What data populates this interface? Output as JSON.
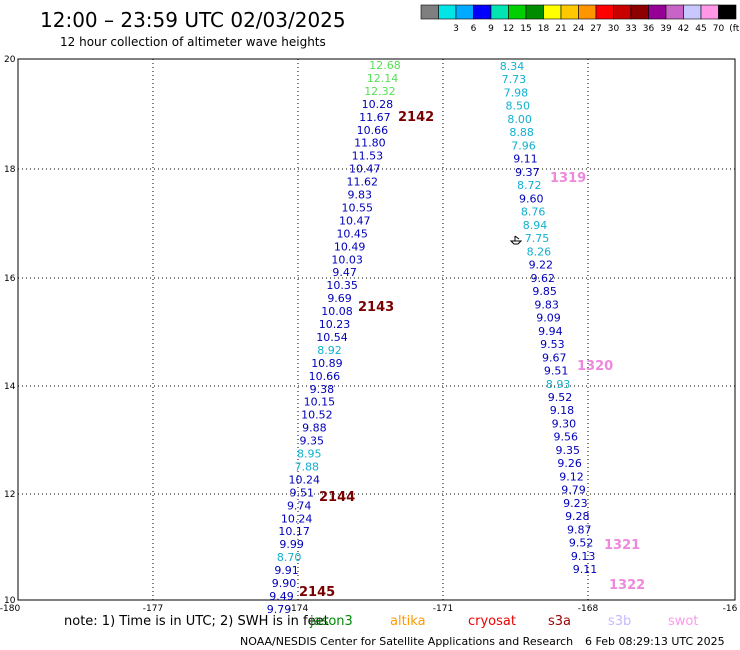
{
  "header": {
    "title": "12:00 – 23:59 UTC 02/03/2025",
    "subtitle": "12 hour collection of altimeter wave heights"
  },
  "legend": {
    "swatches": [
      {
        "color": "#7f7f7f",
        "label": ""
      },
      {
        "color": "#00e5e5",
        "label": "3"
      },
      {
        "color": "#00aaff",
        "label": "6"
      },
      {
        "color": "#0000ff",
        "label": "9"
      },
      {
        "color": "#00e5b2",
        "label": "12"
      },
      {
        "color": "#00d000",
        "label": "15"
      },
      {
        "color": "#008c00",
        "label": "18"
      },
      {
        "color": "#ffff00",
        "label": "21"
      },
      {
        "color": "#ffc800",
        "label": "24"
      },
      {
        "color": "#ff9600",
        "label": "27"
      },
      {
        "color": "#ff0000",
        "label": "30"
      },
      {
        "color": "#c80000",
        "label": "33"
      },
      {
        "color": "#8c0000",
        "label": "36"
      },
      {
        "color": "#960096",
        "label": "39"
      },
      {
        "color": "#c864c8",
        "label": "42"
      },
      {
        "color": "#c8c8ff",
        "label": "45"
      },
      {
        "color": "#ff96e6",
        "label": "70"
      },
      {
        "color": "#000000",
        "label": "(ft)"
      }
    ]
  },
  "axes": {
    "lon_ticks": [
      "-180",
      "-177",
      "-174",
      "-171",
      "-168",
      "-16"
    ],
    "lat_ticks": [
      "10",
      "12",
      "14",
      "16",
      "18",
      "20"
    ]
  },
  "colors": {
    "dark_blue": "#0000bb",
    "cyan": "#10b0d0",
    "light_green": "#55e055",
    "pass_label": "#7a0000",
    "pass_label_pink": "#ee88dd"
  },
  "track_a": [
    {
      "v": "12.68",
      "c": "lightgreen"
    },
    {
      "v": "12.14",
      "c": "lightgreen"
    },
    {
      "v": "12.32",
      "c": "lightgreen"
    },
    {
      "v": "10.28",
      "c": "blue"
    },
    {
      "v": "11.67",
      "c": "blue"
    },
    {
      "v": "10.66",
      "c": "blue"
    },
    {
      "v": "11.80",
      "c": "blue"
    },
    {
      "v": "11.53",
      "c": "blue"
    },
    {
      "v": "10.47",
      "c": "blue"
    },
    {
      "v": "11.62",
      "c": "blue"
    },
    {
      "v": "9.83",
      "c": "blue"
    },
    {
      "v": "10.55",
      "c": "blue"
    },
    {
      "v": "10.47",
      "c": "blue"
    },
    {
      "v": "10.45",
      "c": "blue"
    },
    {
      "v": "10.49",
      "c": "blue"
    },
    {
      "v": "10.03",
      "c": "blue"
    },
    {
      "v": "9.47",
      "c": "blue"
    },
    {
      "v": "10.35",
      "c": "blue"
    },
    {
      "v": "9.69",
      "c": "blue"
    },
    {
      "v": "10.08",
      "c": "blue"
    },
    {
      "v": "10.23",
      "c": "blue"
    },
    {
      "v": "10.54",
      "c": "blue"
    },
    {
      "v": "8.92",
      "c": "cyan"
    },
    {
      "v": "10.89",
      "c": "blue"
    },
    {
      "v": "10.66",
      "c": "blue"
    },
    {
      "v": "9.38",
      "c": "blue"
    },
    {
      "v": "10.15",
      "c": "blue"
    },
    {
      "v": "10.52",
      "c": "blue"
    },
    {
      "v": "9.88",
      "c": "blue"
    },
    {
      "v": "9.35",
      "c": "blue"
    },
    {
      "v": "8.95",
      "c": "cyan"
    },
    {
      "v": "7.88",
      "c": "cyan"
    },
    {
      "v": "10.24",
      "c": "blue"
    },
    {
      "v": "9.51",
      "c": "blue"
    },
    {
      "v": "9.74",
      "c": "blue"
    },
    {
      "v": "10.24",
      "c": "blue"
    },
    {
      "v": "10.17",
      "c": "blue"
    },
    {
      "v": "9.99",
      "c": "blue"
    },
    {
      "v": "8.70",
      "c": "cyan"
    },
    {
      "v": "9.91",
      "c": "blue"
    },
    {
      "v": "9.90",
      "c": "blue"
    },
    {
      "v": "9.49",
      "c": "blue"
    },
    {
      "v": "9.79",
      "c": "blue"
    }
  ],
  "track_b": [
    {
      "v": "8.34",
      "c": "cyan"
    },
    {
      "v": "7.73",
      "c": "cyan"
    },
    {
      "v": "7.98",
      "c": "cyan"
    },
    {
      "v": "8.50",
      "c": "cyan"
    },
    {
      "v": "8.00",
      "c": "cyan"
    },
    {
      "v": "8.88",
      "c": "cyan"
    },
    {
      "v": "7.96",
      "c": "cyan"
    },
    {
      "v": "9.11",
      "c": "blue"
    },
    {
      "v": "9.37",
      "c": "blue"
    },
    {
      "v": "8.72",
      "c": "cyan"
    },
    {
      "v": "9.60",
      "c": "blue"
    },
    {
      "v": "8.76",
      "c": "cyan"
    },
    {
      "v": "8.94",
      "c": "cyan"
    },
    {
      "v": "7.75",
      "c": "cyan"
    },
    {
      "v": "8.26",
      "c": "cyan"
    },
    {
      "v": "9.22",
      "c": "blue"
    },
    {
      "v": "9.62",
      "c": "blue"
    },
    {
      "v": "9.85",
      "c": "blue"
    },
    {
      "v": "9.83",
      "c": "blue"
    },
    {
      "v": "9.09",
      "c": "blue"
    },
    {
      "v": "9.94",
      "c": "blue"
    },
    {
      "v": "9.53",
      "c": "blue"
    },
    {
      "v": "9.67",
      "c": "blue"
    },
    {
      "v": "9.51",
      "c": "blue"
    },
    {
      "v": "8.93",
      "c": "cyan"
    },
    {
      "v": "9.52",
      "c": "blue"
    },
    {
      "v": "9.18",
      "c": "blue"
    },
    {
      "v": "9.30",
      "c": "blue"
    },
    {
      "v": "9.56",
      "c": "blue"
    },
    {
      "v": "9.35",
      "c": "blue"
    },
    {
      "v": "9.26",
      "c": "blue"
    },
    {
      "v": "9.12",
      "c": "blue"
    },
    {
      "v": "9.79",
      "c": "blue"
    },
    {
      "v": "9.23",
      "c": "blue"
    },
    {
      "v": "9.28",
      "c": "blue"
    },
    {
      "v": "9.87",
      "c": "blue"
    },
    {
      "v": "9.52",
      "c": "blue"
    },
    {
      "v": "9.13",
      "c": "blue"
    },
    {
      "v": "9.11",
      "c": "blue"
    }
  ],
  "pass_labels": [
    "2142",
    "2143",
    "2144",
    "2145",
    "1319",
    "1320",
    "1321",
    "1322"
  ],
  "note": {
    "text": "note:  1) Time is in UTC; 2) SWH is in feet",
    "satellites": [
      {
        "name": "jason3",
        "color": "#008800"
      },
      {
        "name": "altika",
        "color": "#ff9900"
      },
      {
        "name": "cryosat",
        "color": "#ee0000"
      },
      {
        "name": "s3a",
        "color": "#990000"
      },
      {
        "name": "s3b",
        "color": "#c8b8ff"
      },
      {
        "name": "swot",
        "color": "#ff99ee"
      }
    ]
  },
  "credit": "NOAA/NESDIS Center for Satellite Applications and Research",
  "timestamp": "6 Feb 08:29:13 UTC 2025"
}
